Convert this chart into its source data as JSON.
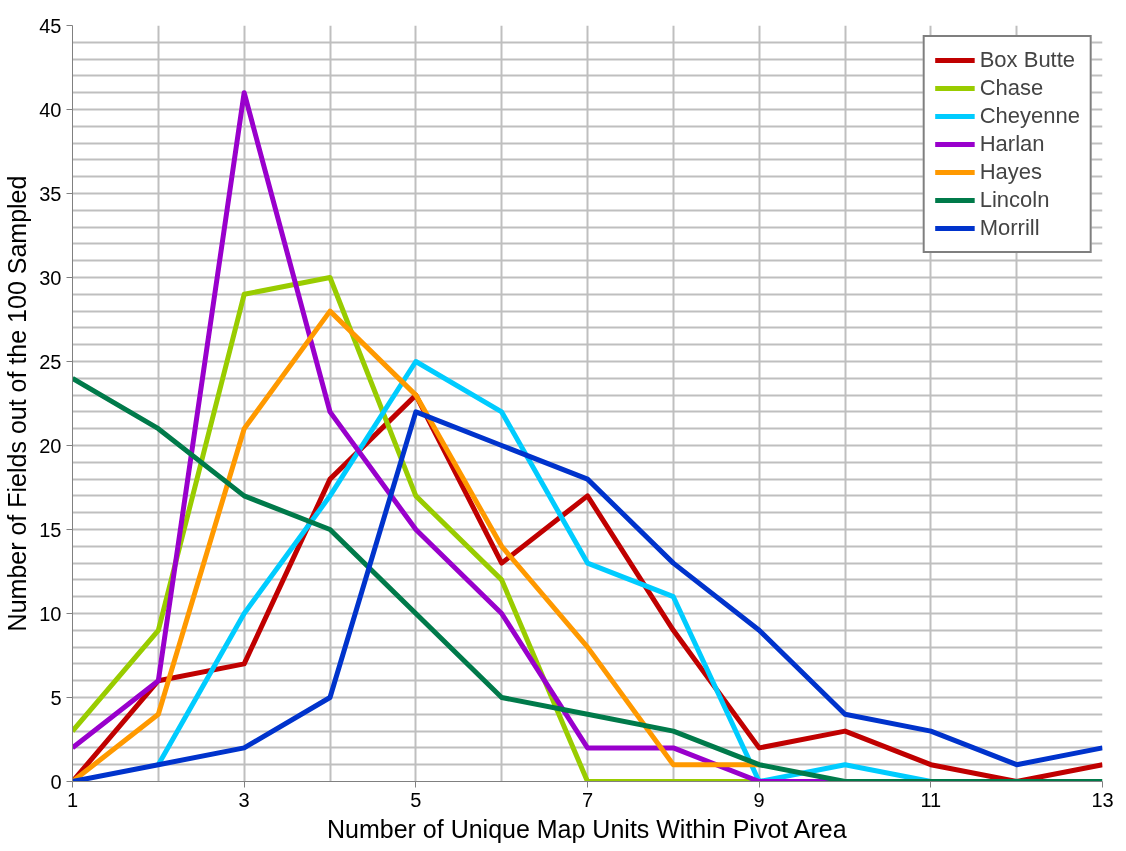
{
  "chart_data": {
    "type": "line",
    "xlabel": "Number of Unique Map Units Within Pivot Area",
    "ylabel": "Number of Fields out of the 100 Sampled",
    "x": [
      1,
      2,
      3,
      4,
      5,
      6,
      7,
      8,
      9,
      10,
      11,
      12,
      13
    ],
    "xlim": [
      1,
      13
    ],
    "xticks": [
      1,
      3,
      5,
      7,
      9,
      11,
      13
    ],
    "ylim": [
      0,
      45
    ],
    "yticks": [
      0,
      5,
      10,
      15,
      20,
      25,
      30,
      35,
      40,
      45
    ],
    "grid": true,
    "legend": "top right",
    "marker": "none",
    "line_style": "solid",
    "series": [
      {
        "name": "Box Butte",
        "color": "#c00000",
        "values": [
          0,
          6,
          7,
          18,
          23,
          13,
          17,
          9,
          2,
          3,
          1,
          0,
          1
        ]
      },
      {
        "name": "Chase",
        "color": "#99cc00",
        "values": [
          3,
          9,
          29,
          30,
          17,
          12,
          0,
          0,
          0,
          null,
          null,
          null,
          null
        ]
      },
      {
        "name": "Cheyenne",
        "color": "#00ccff",
        "values": [
          null,
          1,
          10,
          17,
          25,
          22,
          13,
          11,
          0,
          1,
          0,
          null,
          null
        ]
      },
      {
        "name": "Harlan",
        "color": "#9900cc",
        "values": [
          2,
          6,
          41,
          22,
          15,
          10,
          2,
          2,
          0,
          0,
          null,
          null,
          null
        ]
      },
      {
        "name": "Hayes",
        "color": "#ff9900",
        "values": [
          0,
          4,
          21,
          28,
          23,
          14,
          8,
          1,
          1,
          null,
          null,
          null,
          null
        ]
      },
      {
        "name": "Lincoln",
        "color": "#007a4a",
        "values": [
          24,
          21,
          17,
          15,
          10,
          5,
          4,
          3,
          1,
          0,
          0,
          0,
          0
        ]
      },
      {
        "name": "Morrill",
        "color": "#0033cc",
        "values": [
          0,
          1,
          2,
          5,
          22,
          20,
          18,
          13,
          9,
          4,
          3,
          1,
          2
        ]
      }
    ]
  }
}
